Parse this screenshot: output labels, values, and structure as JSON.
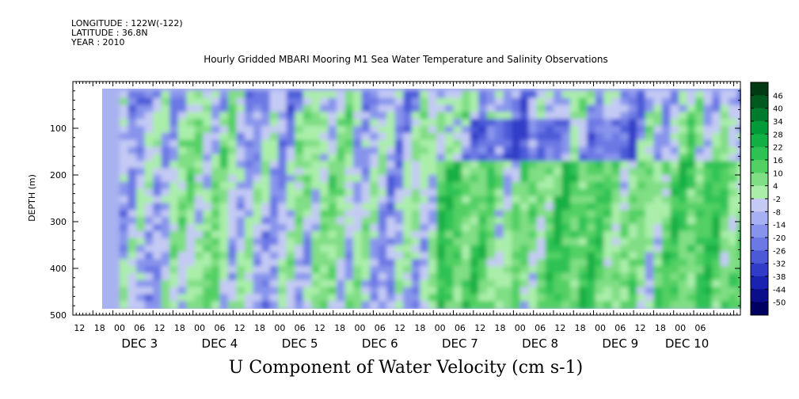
{
  "header": {
    "longitude": "LONGITUDE : 122W(-122)",
    "latitude": "LATITUDE : 36.8N",
    "year": "YEAR : 2010"
  },
  "chart_data": {
    "type": "heatmap",
    "title": "Hourly Gridded MBARI Mooring M1 Sea Water Temperature and Salinity Observations",
    "xlabel": "U Component of Water Velocity (cm s-1)",
    "ylabel": "DEPTH (m)",
    "ylim": [
      500,
      0
    ],
    "yticks": [
      100,
      200,
      300,
      400,
      500
    ],
    "data_depth_range": [
      20,
      485
    ],
    "xlim_hours": [
      0,
      200
    ],
    "hour_labels": [
      "12",
      "18",
      "00",
      "06",
      "12",
      "18",
      "00",
      "06",
      "12",
      "18",
      "00",
      "06",
      "12",
      "18",
      "00",
      "06",
      "12",
      "18",
      "00",
      "06",
      "12",
      "18",
      "00",
      "06",
      "12",
      "18",
      "00",
      "06",
      "12",
      "18",
      "00",
      "06"
    ],
    "day_labels": [
      {
        "label": "DEC  3",
        "hour": 20
      },
      {
        "label": "DEC  4",
        "hour": 44
      },
      {
        "label": "DEC  5",
        "hour": 68
      },
      {
        "label": "DEC  6",
        "hour": 92
      },
      {
        "label": "DEC  7",
        "hour": 116
      },
      {
        "label": "DEC  8",
        "hour": 140
      },
      {
        "label": "DEC  9",
        "hour": 164
      },
      {
        "label": "DEC 10",
        "hour": 184
      }
    ],
    "colorbar": {
      "labels": [
        "46",
        "40",
        "34",
        "28",
        "22",
        "16",
        "10",
        "4",
        "-2",
        "-8",
        "-14",
        "-20",
        "-26",
        "-32",
        "-38",
        "-44",
        "-50"
      ],
      "colors": [
        "#003a14",
        "#005a20",
        "#007a2c",
        "#009a38",
        "#12b044",
        "#2ec254",
        "#52d064",
        "#80de84",
        "#aaeeaa",
        "#c4caf4",
        "#a6b0f2",
        "#8894ec",
        "#6c78e4",
        "#4c5ad8",
        "#303cc8",
        "#1a22b0",
        "#0a0e88",
        "#000060"
      ]
    },
    "series_bands": [
      {
        "depth_range": [
          20,
          60
        ],
        "hour_range": [
          0,
          200
        ],
        "dominant": "light-blue"
      },
      {
        "depth_range": [
          160,
          485
        ],
        "hour_range": [
          108,
          200
        ],
        "dominant": "green"
      },
      {
        "depth_range": [
          80,
          160
        ],
        "hour_range": [
          112,
          168
        ],
        "dominant": "blue"
      }
    ]
  }
}
